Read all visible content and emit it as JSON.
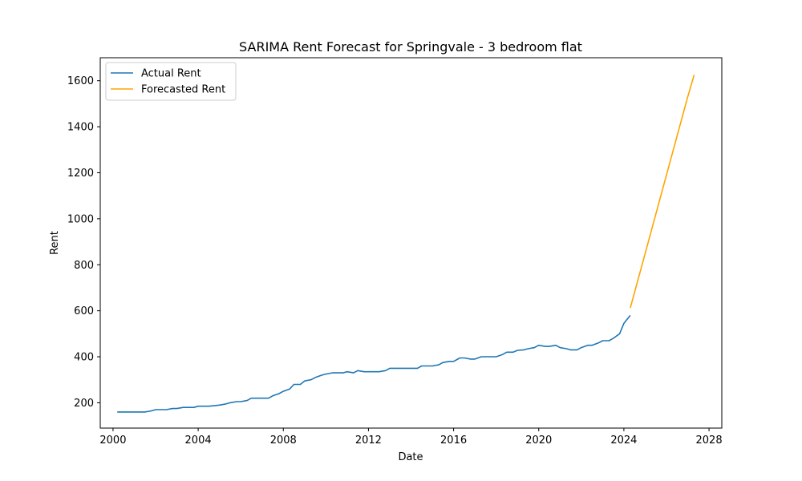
{
  "chart_data": {
    "type": "line",
    "title": "SARIMA Rent Forecast for Springvale - 3 bedroom flat",
    "xlabel": "Date",
    "ylabel": "Rent",
    "xlim": [
      1999.4,
      2028.6
    ],
    "ylim": [
      90,
      1700
    ],
    "x_ticks": [
      2000,
      2004,
      2008,
      2012,
      2016,
      2020,
      2024,
      2028
    ],
    "y_ticks": [
      200,
      400,
      600,
      800,
      1000,
      1200,
      1400,
      1600
    ],
    "grid": false,
    "legend": "top-left",
    "series": [
      {
        "name": "Actual Rent",
        "color": "#1f77b4",
        "x": [
          2000.2,
          2000.5,
          2000.8,
          2001.0,
          2001.3,
          2001.5,
          2001.8,
          2002.0,
          2002.3,
          2002.5,
          2002.8,
          2003.0,
          2003.3,
          2003.5,
          2003.8,
          2004.0,
          2004.3,
          2004.5,
          2004.8,
          2005.0,
          2005.3,
          2005.5,
          2005.8,
          2006.0,
          2006.3,
          2006.5,
          2006.8,
          2007.0,
          2007.3,
          2007.5,
          2007.8,
          2008.0,
          2008.3,
          2008.5,
          2008.8,
          2009.0,
          2009.3,
          2009.5,
          2009.8,
          2010.0,
          2010.3,
          2010.5,
          2010.8,
          2011.0,
          2011.3,
          2011.5,
          2011.8,
          2012.0,
          2012.3,
          2012.5,
          2012.8,
          2013.0,
          2013.3,
          2013.5,
          2013.8,
          2014.0,
          2014.3,
          2014.5,
          2014.8,
          2015.0,
          2015.3,
          2015.5,
          2015.8,
          2016.0,
          2016.3,
          2016.5,
          2016.8,
          2017.0,
          2017.3,
          2017.5,
          2017.8,
          2018.0,
          2018.3,
          2018.5,
          2018.8,
          2019.0,
          2019.3,
          2019.5,
          2019.8,
          2020.0,
          2020.3,
          2020.5,
          2020.8,
          2021.0,
          2021.3,
          2021.5,
          2021.8,
          2022.0,
          2022.3,
          2022.5,
          2022.8,
          2023.0,
          2023.3,
          2023.5,
          2023.8,
          2024.0,
          2024.3
        ],
        "y": [
          160,
          160,
          160,
          160,
          160,
          160,
          165,
          170,
          170,
          170,
          175,
          175,
          180,
          180,
          180,
          185,
          185,
          185,
          188,
          190,
          195,
          200,
          205,
          205,
          210,
          220,
          220,
          220,
          220,
          230,
          240,
          250,
          260,
          280,
          280,
          295,
          300,
          310,
          320,
          325,
          330,
          330,
          330,
          335,
          330,
          340,
          335,
          335,
          335,
          335,
          340,
          350,
          350,
          350,
          350,
          350,
          350,
          360,
          360,
          360,
          365,
          375,
          380,
          380,
          395,
          395,
          390,
          390,
          400,
          400,
          400,
          400,
          410,
          420,
          420,
          428,
          430,
          435,
          440,
          450,
          445,
          445,
          450,
          440,
          435,
          430,
          430,
          440,
          450,
          450,
          460,
          470,
          470,
          480,
          500,
          545,
          580
        ]
      },
      {
        "name": "Forecasted Rent",
        "color": "#ffa500",
        "x": [
          2024.3,
          2025.0,
          2026.0,
          2027.0,
          2027.3
        ],
        "y": [
          612,
          850,
          1190,
          1530,
          1625
        ]
      }
    ]
  }
}
